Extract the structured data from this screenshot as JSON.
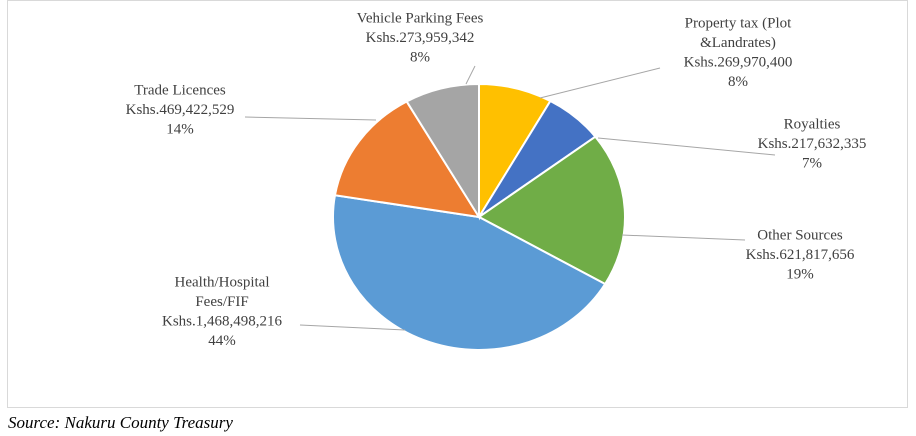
{
  "chart_data": {
    "type": "pie",
    "categories": [
      [
        "Property tax (Plot",
        "&Landrates)"
      ],
      [
        "Royalties"
      ],
      [
        "Other Sources"
      ],
      [
        "Health/Hospital",
        "Fees/FIF"
      ],
      [
        "Trade Licences"
      ],
      [
        "Vehicle Parking Fees"
      ]
    ],
    "values": [
      269970400,
      217632335,
      621817656,
      1468498216,
      469422529,
      273959342
    ],
    "value_labels": [
      "Kshs.269,970,400",
      "Kshs.217,632,335",
      "Kshs.621,817,656",
      "Kshs.1,468,498,216",
      "Kshs.469,422,529",
      "Kshs.273,959,342"
    ],
    "percent_labels": [
      "8%",
      "7%",
      "19%",
      "44%",
      "14%",
      "8%"
    ],
    "colors": [
      "#ffc000",
      "#4472c4",
      "#70ad47",
      "#5b9bd5",
      "#ed7d31",
      "#a5a5a5"
    ],
    "source": "Source: Nakuru County Treasury"
  }
}
